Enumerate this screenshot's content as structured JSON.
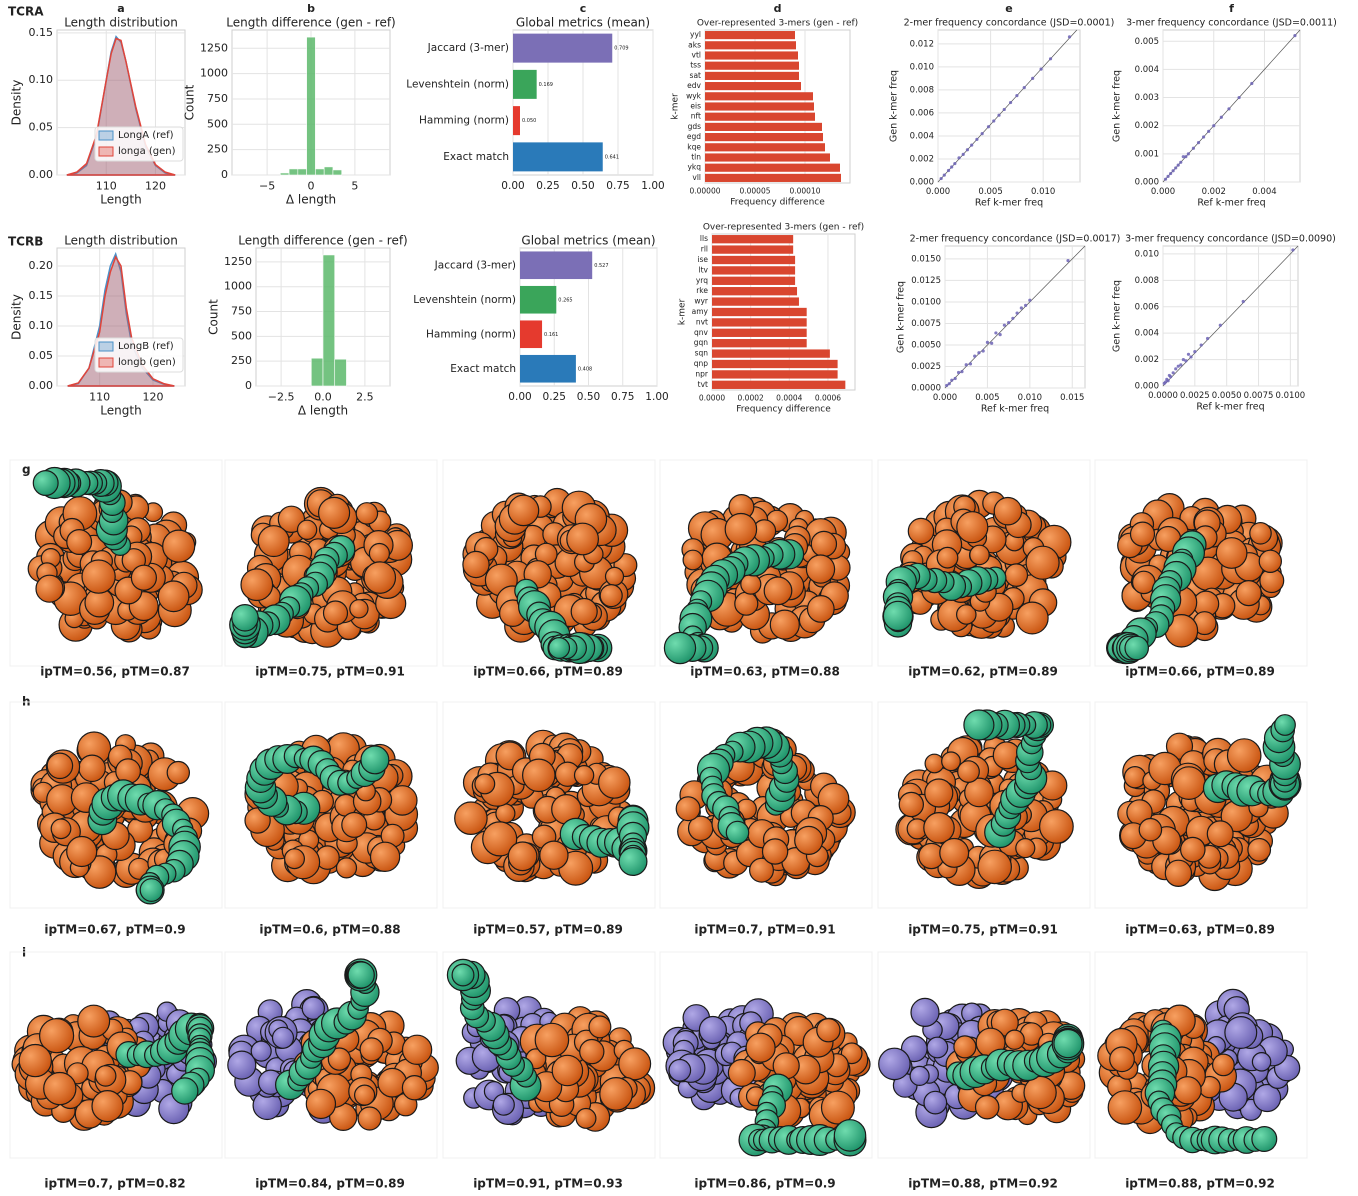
{
  "row_labels": [
    "TCRA",
    "TCRB"
  ],
  "chart_data": [
    {
      "type": "density",
      "panel_label": "a",
      "title": "Length distribution",
      "xlabel": "Length",
      "ylabel": "Density",
      "x": [
        102,
        104,
        106,
        108,
        110,
        111,
        112,
        113,
        114,
        116,
        118,
        120,
        122,
        124
      ],
      "series": [
        {
          "name": "LongA (ref)",
          "color": "#4a90c8",
          "values": [
            0,
            0.002,
            0.01,
            0.04,
            0.1,
            0.13,
            0.146,
            0.14,
            0.12,
            0.07,
            0.03,
            0.01,
            0.002,
            0
          ]
        },
        {
          "name": "longa (gen)",
          "color": "#e0443a",
          "values": [
            0,
            0.003,
            0.012,
            0.042,
            0.1,
            0.128,
            0.144,
            0.142,
            0.12,
            0.072,
            0.032,
            0.011,
            0.003,
            0
          ]
        }
      ],
      "xlim": [
        100,
        126
      ],
      "ylim": [
        0,
        0.153
      ],
      "xticks": [
        110,
        120
      ],
      "yticks": [
        {
          "value": 0,
          "label": "0.00"
        },
        0.05,
        {
          "value": 0.1,
          "label": "0.10"
        },
        0.15
      ],
      "grid": true,
      "legend": "lower right"
    },
    {
      "type": "histogram",
      "panel_label": "b",
      "title": "Length difference (gen - ref)",
      "xlabel": "Δ length",
      "ylabel": "Count",
      "bins": [
        -3.5,
        -2.5,
        -1.5,
        -0.5,
        0.5,
        1.5,
        2.5,
        3.5
      ],
      "counts": [
        20,
        60,
        60,
        1360,
        60,
        80,
        50
      ],
      "color": "#5cb96b",
      "xlim": [
        -9,
        9
      ],
      "ylim": [
        0,
        1430
      ],
      "xticks": [
        {
          "value": -5,
          "label": "−5"
        },
        0,
        5
      ],
      "yticks": [
        0,
        250,
        500,
        750,
        1000,
        1250
      ],
      "grid": true
    },
    {
      "type": "bar",
      "orientation": "horizontal",
      "panel_label": "c",
      "title": "Global metrics (mean)",
      "categories": [
        "Jaccard (3-mer)",
        "Levenshtein (norm)",
        "Hamming (norm)",
        "Exact match"
      ],
      "values": [
        0.709,
        0.169,
        0.05,
        0.641
      ],
      "value_labels": [
        "0.709",
        "0.169",
        "0.050",
        "0.641"
      ],
      "colors": [
        "#7b6fb6",
        "#3aa55a",
        "#e53a2e",
        "#2a7ab9"
      ],
      "xlim": [
        0,
        1
      ],
      "xticks": [
        {
          "value": 0,
          "label": "0.00"
        },
        0.25,
        {
          "value": 0.5,
          "label": "0.50"
        },
        0.75,
        {
          "value": 1,
          "label": "1.00"
        }
      ],
      "grid": true
    },
    {
      "type": "bar",
      "orientation": "horizontal",
      "panel_label": "d",
      "title": "Over-represented 3-mers (gen - ref)",
      "xlabel": "Frequency difference",
      "ylabel": "k-mer",
      "categories": [
        "yyl",
        "aks",
        "vtl",
        "tss",
        "sat",
        "edv",
        "wyk",
        "eis",
        "nft",
        "gds",
        "egd",
        "kqe",
        "tln",
        "ykq",
        "vll"
      ],
      "values": [
        9e-05,
        9.1e-05,
        9.3e-05,
        9.4e-05,
        9.4e-05,
        9.6e-05,
        0.000108,
        0.000109,
        0.00011,
        0.000117,
        0.000118,
        0.00012,
        0.000125,
        0.000135,
        0.000136
      ],
      "color": "#d9462f",
      "xlim": [
        0,
        0.000145
      ],
      "xticks": [
        {
          "value": 0,
          "label": "0.00000"
        },
        5e-05,
        {
          "value": 0.0001,
          "label": "0.00010"
        }
      ],
      "grid": true
    },
    {
      "type": "scatter",
      "panel_label": "e",
      "title": "2-mer frequency concordance (JSD=0.0001)",
      "xlabel": "Ref k-mer freq",
      "ylabel": "Gen k-mer freq",
      "x": [
        0.0003,
        0.0006,
        0.001,
        0.0013,
        0.0016,
        0.002,
        0.0024,
        0.0028,
        0.0032,
        0.0037,
        0.0042,
        0.0048,
        0.0053,
        0.0058,
        0.0063,
        0.0069,
        0.0075,
        0.0082,
        0.009,
        0.0098,
        0.0107,
        0.0125
      ],
      "values": [
        0.0003,
        0.0006,
        0.001,
        0.0013,
        0.0016,
        0.0021,
        0.0024,
        0.0028,
        0.0032,
        0.0037,
        0.0042,
        0.0048,
        0.0053,
        0.0058,
        0.0063,
        0.0069,
        0.0075,
        0.0082,
        0.009,
        0.0098,
        0.0107,
        0.0126
      ],
      "color": "#6c63b5",
      "xlim": [
        0,
        0.0135
      ],
      "ylim": [
        0,
        0.0132
      ],
      "xticks": [
        {
          "value": 0,
          "label": "0.000"
        },
        0.005,
        {
          "value": 0.01,
          "label": "0.010"
        }
      ],
      "yticks": [
        {
          "value": 0,
          "label": "0.000"
        },
        0.002,
        0.004,
        0.006,
        0.008,
        {
          "value": 0.01,
          "label": "0.010"
        },
        0.012
      ],
      "diagonal": true,
      "grid": true
    },
    {
      "type": "scatter",
      "panel_label": "f",
      "title": "3-mer frequency concordance (JSD=0.0011)",
      "xlabel": "Ref k-mer freq",
      "ylabel": "Gen k-mer freq",
      "x": [
        0.0001,
        0.0002,
        0.0003,
        0.0004,
        0.0005,
        0.0006,
        0.0007,
        0.0008,
        0.0009,
        0.001,
        0.0012,
        0.0014,
        0.0016,
        0.0018,
        0.002,
        0.0023,
        0.0026,
        0.003,
        0.0035,
        0.0052
      ],
      "values": [
        0.0001,
        0.0002,
        0.0003,
        0.0004,
        0.0005,
        0.0006,
        0.0007,
        0.0009,
        0.0009,
        0.001,
        0.0012,
        0.0014,
        0.0016,
        0.0018,
        0.002,
        0.0023,
        0.0026,
        0.003,
        0.0035,
        0.0052
      ],
      "color": "#6c63b5",
      "xlim": [
        0,
        0.0054
      ],
      "ylim": [
        0,
        0.0054
      ],
      "xticks": [
        {
          "value": 0,
          "label": "0.000"
        },
        0.002,
        0.004
      ],
      "yticks": [
        {
          "value": 0,
          "label": "0.000"
        },
        0.001,
        0.002,
        0.003,
        0.004,
        0.005
      ],
      "diagonal": true,
      "grid": true
    },
    {
      "type": "density",
      "title": "Length distribution",
      "xlabel": "Length",
      "ylabel": "Density",
      "x": [
        104,
        106,
        108,
        110,
        111,
        112,
        113,
        114,
        115,
        116,
        118,
        120,
        122,
        124
      ],
      "series": [
        {
          "name": "LongB (ref)",
          "color": "#4a90c8",
          "values": [
            0,
            0.004,
            0.03,
            0.1,
            0.16,
            0.2,
            0.22,
            0.19,
            0.12,
            0.07,
            0.03,
            0.01,
            0.003,
            0
          ]
        },
        {
          "name": "longb (gen)",
          "color": "#e0443a",
          "values": [
            0,
            0.005,
            0.03,
            0.09,
            0.15,
            0.19,
            0.215,
            0.2,
            0.13,
            0.08,
            0.035,
            0.012,
            0.004,
            0
          ]
        }
      ],
      "xlim": [
        102,
        126
      ],
      "ylim": [
        0,
        0.23
      ],
      "xticks": [
        110,
        120
      ],
      "yticks": [
        {
          "value": 0,
          "label": "0.00"
        },
        0.05,
        {
          "value": 0.1,
          "label": "0.10"
        },
        0.15,
        {
          "value": 0.2,
          "label": "0.20"
        }
      ],
      "grid": true,
      "legend": "lower right"
    },
    {
      "type": "histogram",
      "title": "Length difference (gen - ref)",
      "xlabel": "Δ length",
      "ylabel": "Count",
      "bins": [
        -0.7,
        0,
        0.7,
        1.4
      ],
      "counts": [
        280,
        1320,
        270
      ],
      "color": "#5cb96b",
      "xlim": [
        -4,
        4
      ],
      "ylim": [
        0,
        1390
      ],
      "xticks": [
        {
          "value": -2.5,
          "label": "−2.5"
        },
        {
          "value": 0,
          "label": "0.0"
        },
        2.5
      ],
      "yticks": [
        0,
        250,
        500,
        750,
        1000,
        1250
      ],
      "grid": true
    },
    {
      "type": "bar",
      "orientation": "horizontal",
      "title": "Global metrics (mean)",
      "categories": [
        "Jaccard (3-mer)",
        "Levenshtein (norm)",
        "Hamming (norm)",
        "Exact match"
      ],
      "values": [
        0.527,
        0.265,
        0.161,
        0.408
      ],
      "value_labels": [
        "0.527",
        "0.265",
        "0.161",
        "0.408"
      ],
      "colors": [
        "#7b6fb6",
        "#3aa55a",
        "#e53a2e",
        "#2a7ab9"
      ],
      "xlim": [
        0,
        1
      ],
      "xticks": [
        {
          "value": 0,
          "label": "0.00"
        },
        0.25,
        {
          "value": 0.5,
          "label": "0.50"
        },
        0.75,
        {
          "value": 1,
          "label": "1.00"
        }
      ],
      "grid": true
    },
    {
      "type": "bar",
      "orientation": "horizontal",
      "title": "Over-represented 3-mers (gen - ref)",
      "xlabel": "Frequency difference",
      "ylabel": "k-mer",
      "categories": [
        "lls",
        "rll",
        "ise",
        "ltv",
        "yrq",
        "rke",
        "wyr",
        "amy",
        "nvt",
        "qnv",
        "gqn",
        "sqn",
        "qnp",
        "npr",
        "tvt"
      ],
      "values": [
        0.00042,
        0.00042,
        0.00043,
        0.00043,
        0.00043,
        0.00044,
        0.00045,
        0.00049,
        0.00049,
        0.00049,
        0.00049,
        0.00061,
        0.00065,
        0.00065,
        0.00069
      ],
      "color": "#d9462f",
      "xlim": [
        0,
        0.00074
      ],
      "xticks": [
        {
          "value": 0,
          "label": "0.0000"
        },
        0.0002,
        0.0004,
        0.0006
      ],
      "grid": true
    },
    {
      "type": "scatter",
      "title": "2-mer frequency concordance (JSD=0.0017)",
      "xlabel": "Ref k-mer freq",
      "ylabel": "Gen k-mer freq",
      "x": [
        0.0002,
        0.0005,
        0.0008,
        0.0012,
        0.0016,
        0.002,
        0.0025,
        0.003,
        0.0035,
        0.004,
        0.0045,
        0.005,
        0.0055,
        0.006,
        0.0065,
        0.007,
        0.0075,
        0.008,
        0.0085,
        0.009,
        0.0095,
        0.01,
        0.0145
      ],
      "values": [
        0.0003,
        0.0005,
        0.0009,
        0.0011,
        0.0018,
        0.0019,
        0.0027,
        0.0028,
        0.0037,
        0.0041,
        0.0043,
        0.0053,
        0.0052,
        0.0064,
        0.0062,
        0.0073,
        0.0076,
        0.0081,
        0.0087,
        0.0093,
        0.0096,
        0.0102,
        0.0148
      ],
      "color": "#6c63b5",
      "xlim": [
        0,
        0.0165
      ],
      "ylim": [
        0,
        0.0165
      ],
      "xticks": [
        {
          "value": 0,
          "label": "0.000"
        },
        0.005,
        {
          "value": 0.01,
          "label": "0.010"
        },
        0.015
      ],
      "yticks": [
        {
          "value": 0,
          "label": "0.0000"
        },
        0.0025,
        {
          "value": 0.005,
          "label": "0.0050"
        },
        0.0075,
        {
          "value": 0.01,
          "label": "0.0100"
        },
        0.0125,
        {
          "value": 0.015,
          "label": "0.0150"
        }
      ],
      "diagonal": true,
      "grid": true
    },
    {
      "type": "scatter",
      "title": "3-mer frequency concordance (JSD=0.0090)",
      "xlabel": "Ref k-mer freq",
      "ylabel": "Gen k-mer freq",
      "x": [
        0.0001,
        0.0002,
        0.0003,
        0.0004,
        0.0005,
        0.0006,
        0.0008,
        0.001,
        0.0012,
        0.0014,
        0.0016,
        0.0018,
        0.002,
        0.0022,
        0.0025,
        0.003,
        0.0035,
        0.0045,
        0.0063,
        0.0102
      ],
      "values": [
        0.0002,
        0.0003,
        0.0005,
        0.0004,
        0.0008,
        0.0007,
        0.001,
        0.0013,
        0.0015,
        0.0016,
        0.002,
        0.0019,
        0.0024,
        0.0022,
        0.0026,
        0.0031,
        0.0036,
        0.0046,
        0.0064,
        0.0103
      ],
      "color": "#6c63b5",
      "xlim": [
        0,
        0.0106
      ],
      "ylim": [
        0,
        0.0106
      ],
      "xticks": [
        {
          "value": 0,
          "label": "0.0000"
        },
        0.0025,
        {
          "value": 0.005,
          "label": "0.0050"
        },
        0.0075,
        {
          "value": 0.01,
          "label": "0.0100"
        }
      ],
      "yticks": [
        {
          "value": 0,
          "label": "0.000"
        },
        0.002,
        0.004,
        0.006,
        0.008,
        {
          "value": 0.01,
          "label": "0.010"
        }
      ],
      "diagonal": true,
      "grid": true
    }
  ],
  "structures": [
    {
      "panel_label": "g",
      "captions": [
        "ipTM=0.56, pTM=0.87",
        "ipTM=0.75, pTM=0.91",
        "ipTM=0.66, pTM=0.89",
        "ipTM=0.63, pTM=0.88",
        "ipTM=0.62, pTM=0.89",
        "ipTM=0.66, pTM=0.89"
      ]
    },
    {
      "panel_label": "h",
      "captions": [
        "ipTM=0.67, pTM=0.9",
        "ipTM=0.6, pTM=0.88",
        "ipTM=0.57, pTM=0.89",
        "ipTM=0.7, pTM=0.91",
        "ipTM=0.75, pTM=0.91",
        "ipTM=0.63, pTM=0.89"
      ]
    },
    {
      "panel_label": "i",
      "captions": [
        "ipTM=0.7, pTM=0.82",
        "ipTM=0.84, pTM=0.89",
        "ipTM=0.91, pTM=0.93",
        "ipTM=0.86, pTM=0.9",
        "ipTM=0.88, pTM=0.92",
        "ipTM=0.88, pTM=0.92"
      ]
    }
  ]
}
